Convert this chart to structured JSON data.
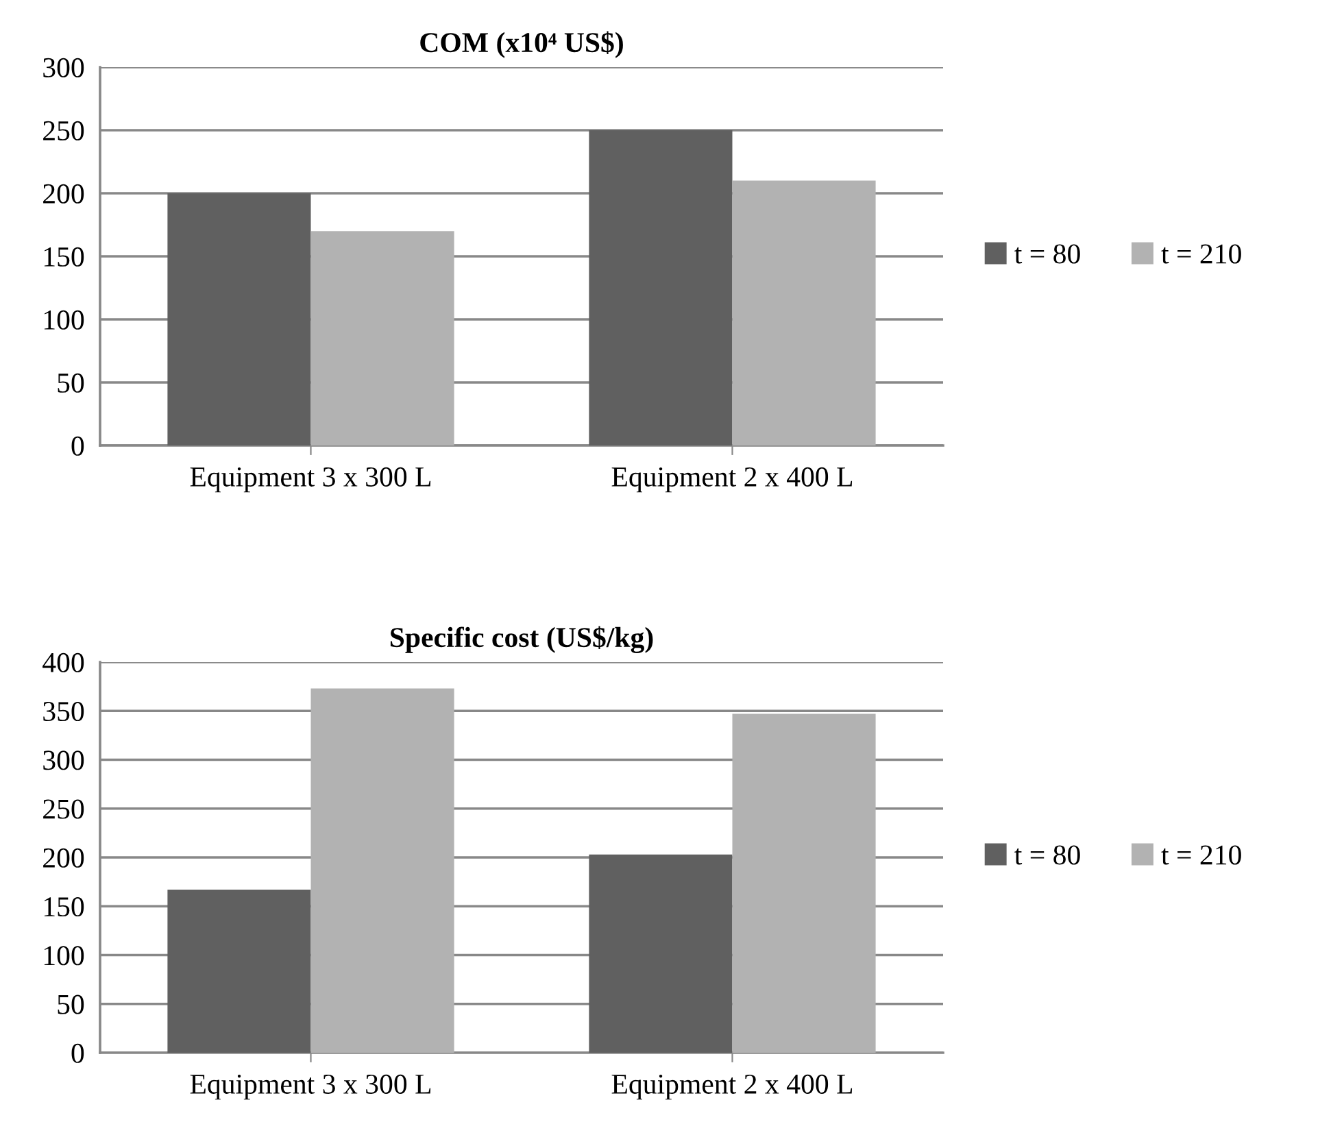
{
  "chart_data": [
    {
      "type": "bar",
      "title": "COM (x10⁴ US$)",
      "categories": [
        "Equipment 3 x 300 L",
        "Equipment 2 x 400 L"
      ],
      "series": [
        {
          "name": "t = 80",
          "color": "#606060",
          "values": [
            200,
            250
          ]
        },
        {
          "name": "t = 210",
          "color": "#b2b2b2",
          "values": [
            170,
            210
          ]
        }
      ],
      "ylim": [
        0,
        300
      ],
      "yticks": [
        0,
        50,
        100,
        150,
        200,
        250,
        300
      ],
      "grid": "y",
      "legend": "right"
    },
    {
      "type": "bar",
      "title": "Specific cost (US$/kg)",
      "categories": [
        "Equipment 3 x 300 L",
        "Equipment 2 x 400 L"
      ],
      "series": [
        {
          "name": "t = 80",
          "color": "#606060",
          "values": [
            167,
            203
          ]
        },
        {
          "name": "t = 210",
          "color": "#b2b2b2",
          "values": [
            373,
            347
          ]
        }
      ],
      "ylim": [
        0,
        400
      ],
      "yticks": [
        0,
        50,
        100,
        150,
        200,
        250,
        300,
        350,
        400
      ],
      "grid": "y",
      "legend": "right"
    }
  ]
}
